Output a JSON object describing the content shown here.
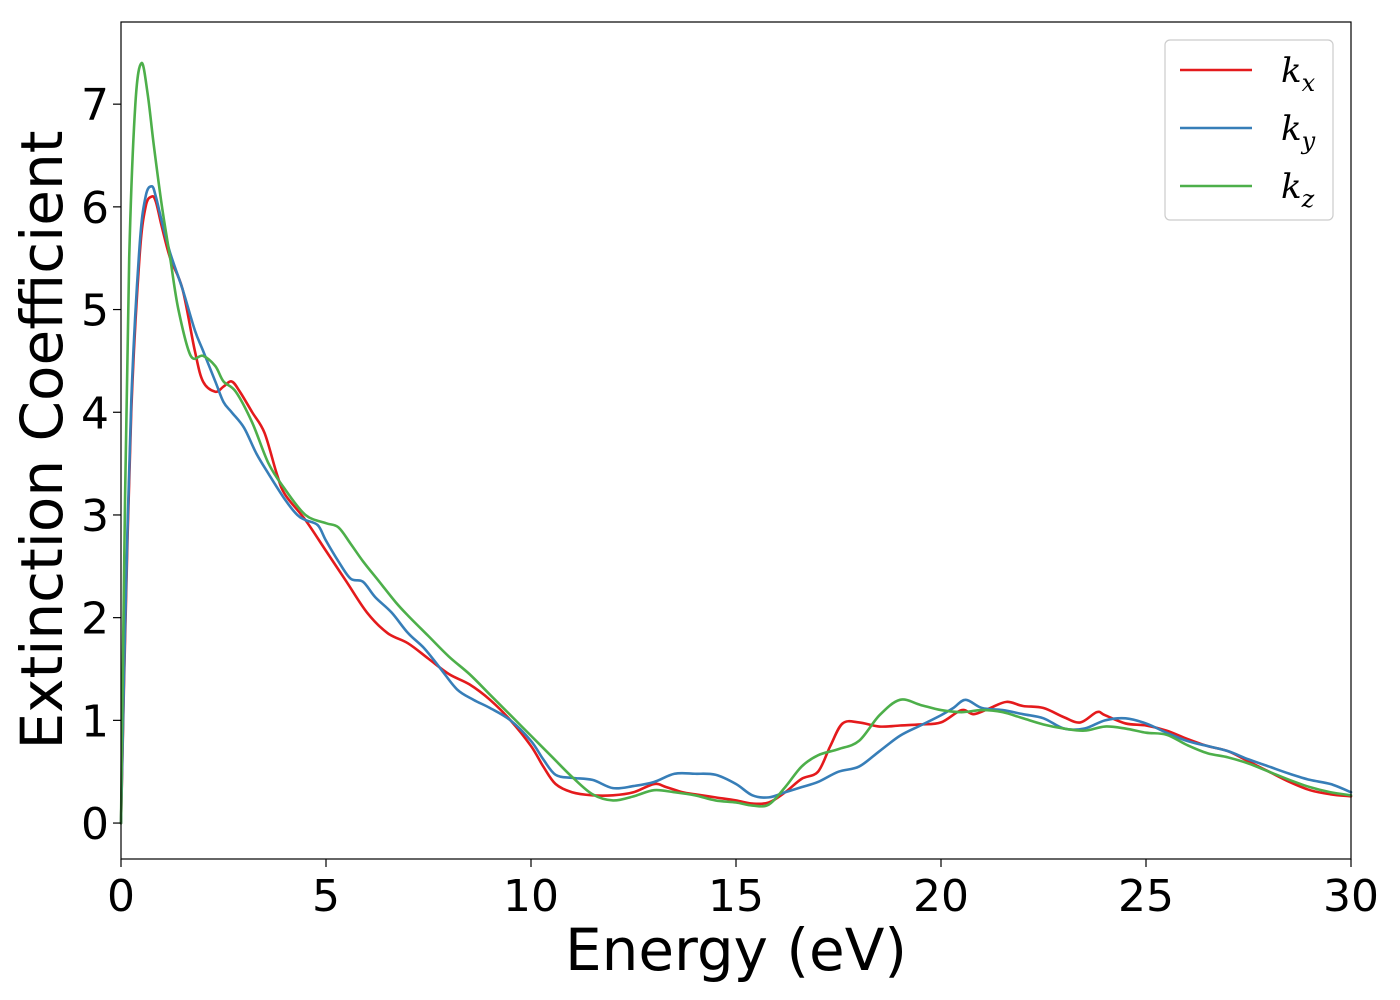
{
  "chart_data": {
    "type": "line",
    "xlabel": "Energy (eV)",
    "ylabel": "Extinction Coefficient",
    "xlim": [
      0,
      30
    ],
    "ylim": [
      -0.35,
      7.8
    ],
    "xticks": [
      0,
      5,
      10,
      15,
      20,
      25,
      30
    ],
    "yticks": [
      0,
      1,
      2,
      3,
      4,
      5,
      6,
      7
    ],
    "grid": false,
    "legend_position": "top-right",
    "series": [
      {
        "name": "k_x",
        "label_base": "k",
        "label_sub": "x",
        "color": "#e41a1c",
        "x": [
          0,
          0.1,
          0.25,
          0.45,
          0.6,
          0.75,
          0.85,
          1.0,
          1.2,
          1.5,
          1.8,
          2.0,
          2.3,
          2.5,
          2.7,
          2.9,
          3.2,
          3.5,
          3.8,
          4.0,
          4.5,
          5.0,
          5.5,
          6.0,
          6.5,
          7.0,
          7.5,
          8.0,
          8.5,
          9.0,
          9.5,
          10.0,
          10.3,
          10.6,
          11.0,
          11.5,
          12.0,
          12.5,
          13.0,
          13.3,
          13.7,
          14.0,
          14.5,
          15.0,
          15.4,
          15.8,
          16.2,
          16.6,
          17.0,
          17.3,
          17.6,
          18.0,
          18.5,
          19.0,
          19.5,
          20.0,
          20.5,
          20.8,
          21.2,
          21.6,
          22.0,
          22.5,
          23.0,
          23.4,
          23.8,
          24.0,
          24.5,
          25.0,
          25.5,
          26.0,
          26.5,
          27.0,
          27.5,
          28.0,
          28.5,
          29.0,
          29.5,
          30.0
        ],
        "values": [
          0.0,
          1.8,
          4.0,
          5.5,
          6.0,
          6.1,
          6.05,
          5.8,
          5.5,
          5.2,
          4.6,
          4.3,
          4.2,
          4.25,
          4.3,
          4.2,
          4.0,
          3.8,
          3.4,
          3.2,
          2.95,
          2.65,
          2.35,
          2.05,
          1.85,
          1.75,
          1.6,
          1.45,
          1.35,
          1.2,
          1.0,
          0.75,
          0.55,
          0.38,
          0.3,
          0.27,
          0.27,
          0.3,
          0.38,
          0.35,
          0.3,
          0.28,
          0.25,
          0.22,
          0.19,
          0.2,
          0.3,
          0.43,
          0.5,
          0.75,
          0.97,
          0.98,
          0.94,
          0.95,
          0.96,
          0.98,
          1.1,
          1.06,
          1.12,
          1.18,
          1.14,
          1.12,
          1.03,
          0.98,
          1.08,
          1.05,
          0.97,
          0.95,
          0.9,
          0.82,
          0.75,
          0.7,
          0.6,
          0.5,
          0.4,
          0.32,
          0.28,
          0.26
        ]
      },
      {
        "name": "k_y",
        "label_base": "k",
        "label_sub": "y",
        "color": "#377eb8",
        "x": [
          0,
          0.1,
          0.25,
          0.45,
          0.6,
          0.75,
          0.85,
          1.0,
          1.2,
          1.5,
          1.8,
          2.0,
          2.3,
          2.5,
          2.7,
          3.0,
          3.3,
          3.6,
          4.0,
          4.3,
          4.5,
          4.8,
          5.0,
          5.3,
          5.6,
          5.9,
          6.2,
          6.6,
          7.0,
          7.4,
          7.8,
          8.2,
          8.6,
          9.0,
          9.5,
          10.0,
          10.3,
          10.6,
          11.0,
          11.5,
          12.0,
          12.5,
          13.0,
          13.5,
          14.0,
          14.5,
          15.0,
          15.4,
          15.8,
          16.2,
          16.6,
          17.0,
          17.5,
          18.0,
          18.5,
          19.0,
          19.5,
          20.0,
          20.3,
          20.6,
          21.0,
          21.5,
          22.0,
          22.5,
          23.0,
          23.5,
          24.0,
          24.5,
          25.0,
          25.5,
          26.0,
          26.5,
          27.0,
          27.5,
          28.0,
          28.5,
          29.0,
          29.5,
          30.0
        ],
        "values": [
          0.0,
          1.9,
          4.1,
          5.6,
          6.1,
          6.2,
          6.1,
          5.85,
          5.55,
          5.2,
          4.8,
          4.6,
          4.3,
          4.1,
          4.0,
          3.85,
          3.6,
          3.4,
          3.15,
          3.0,
          2.95,
          2.9,
          2.75,
          2.55,
          2.38,
          2.35,
          2.2,
          2.05,
          1.85,
          1.7,
          1.5,
          1.3,
          1.2,
          1.12,
          1.0,
          0.8,
          0.62,
          0.47,
          0.44,
          0.42,
          0.34,
          0.36,
          0.4,
          0.48,
          0.48,
          0.47,
          0.38,
          0.27,
          0.25,
          0.3,
          0.35,
          0.4,
          0.5,
          0.55,
          0.7,
          0.85,
          0.95,
          1.05,
          1.12,
          1.2,
          1.12,
          1.1,
          1.06,
          1.02,
          0.92,
          0.92,
          1.0,
          1.02,
          0.97,
          0.88,
          0.8,
          0.75,
          0.7,
          0.62,
          0.55,
          0.48,
          0.42,
          0.38,
          0.3
        ]
      },
      {
        "name": "k_z",
        "label_base": "k",
        "label_sub": "z",
        "color": "#4daf4a",
        "x": [
          0,
          0.1,
          0.2,
          0.35,
          0.5,
          0.65,
          0.8,
          1.0,
          1.2,
          1.4,
          1.7,
          2.0,
          2.3,
          2.5,
          2.8,
          3.2,
          3.6,
          4.0,
          4.5,
          5.0,
          5.3,
          5.6,
          5.9,
          6.3,
          6.7,
          7.0,
          7.5,
          8.0,
          8.5,
          9.0,
          9.5,
          10.0,
          10.5,
          11.0,
          11.5,
          12.0,
          12.5,
          13.0,
          13.5,
          14.0,
          14.5,
          15.0,
          15.4,
          15.8,
          16.2,
          16.6,
          17.0,
          17.5,
          18.0,
          18.5,
          19.0,
          19.5,
          20.0,
          20.5,
          21.0,
          21.5,
          22.0,
          22.5,
          23.0,
          23.5,
          24.0,
          24.5,
          25.0,
          25.5,
          26.0,
          26.5,
          27.0,
          27.5,
          28.0,
          28.5,
          29.0,
          29.5,
          30.0
        ],
        "values": [
          0.0,
          3.2,
          5.5,
          7.0,
          7.4,
          7.1,
          6.6,
          6.0,
          5.5,
          5.0,
          4.55,
          4.55,
          4.45,
          4.3,
          4.2,
          3.9,
          3.5,
          3.25,
          3.0,
          2.92,
          2.88,
          2.72,
          2.55,
          2.35,
          2.15,
          2.02,
          1.82,
          1.62,
          1.45,
          1.25,
          1.05,
          0.85,
          0.65,
          0.45,
          0.28,
          0.22,
          0.26,
          0.32,
          0.3,
          0.27,
          0.22,
          0.2,
          0.17,
          0.18,
          0.35,
          0.55,
          0.66,
          0.72,
          0.8,
          1.05,
          1.2,
          1.15,
          1.1,
          1.08,
          1.1,
          1.08,
          1.02,
          0.96,
          0.92,
          0.9,
          0.94,
          0.92,
          0.88,
          0.86,
          0.76,
          0.68,
          0.64,
          0.58,
          0.5,
          0.42,
          0.35,
          0.3,
          0.27
        ]
      }
    ]
  }
}
